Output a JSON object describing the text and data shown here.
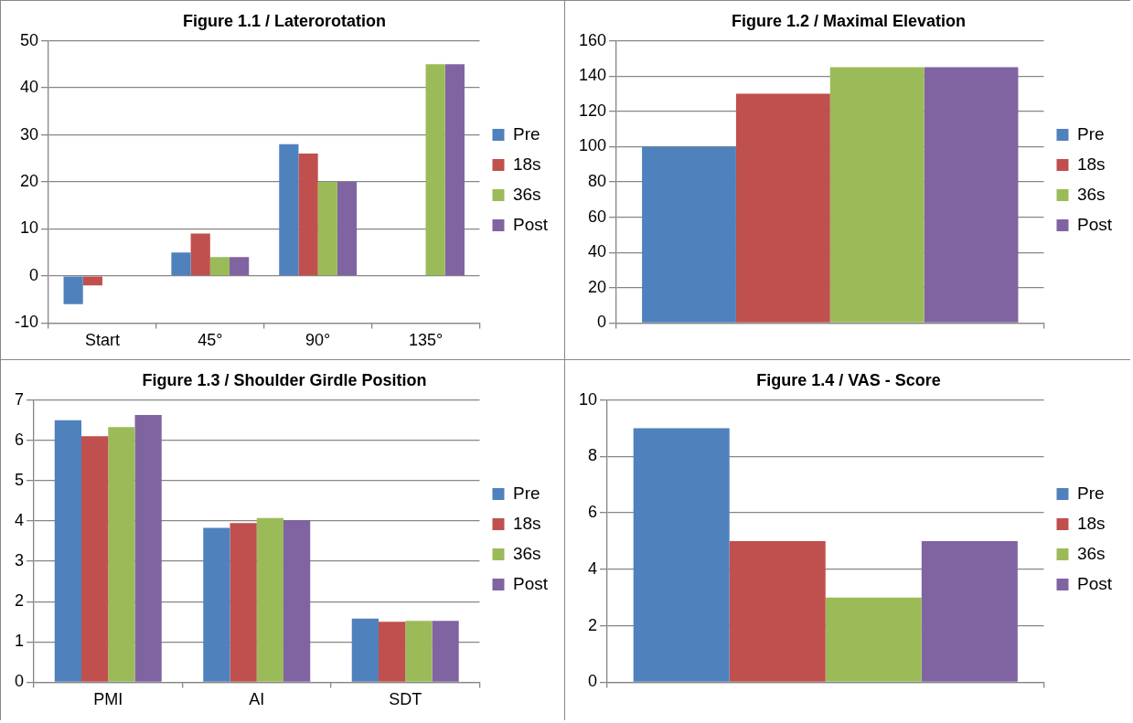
{
  "chart_data": [
    {
      "type": "bar",
      "title": "Figure 1.1 / Laterorotation",
      "categories": [
        "Start",
        "45°",
        "90°",
        "135°"
      ],
      "series": [
        {
          "name": "Pre",
          "color": "#4f81bd",
          "values": [
            -6,
            5,
            28,
            null
          ]
        },
        {
          "name": "18s",
          "color": "#c0504d",
          "values": [
            -2,
            9,
            26,
            null
          ]
        },
        {
          "name": "36s",
          "color": "#9bbb59",
          "values": [
            null,
            4,
            20,
            45
          ]
        },
        {
          "name": "Post",
          "color": "#8064a2",
          "values": [
            null,
            4,
            20,
            45
          ]
        }
      ],
      "ylim": [
        -10,
        50
      ],
      "yticks": [
        -10,
        0,
        10,
        20,
        30,
        40,
        50
      ],
      "grid": "y",
      "legend": "right"
    },
    {
      "type": "bar",
      "title": "Figure 1.2 / Maximal Elevation",
      "categories": [
        null
      ],
      "series": [
        {
          "name": "Pre",
          "color": "#4f81bd",
          "values": [
            100
          ]
        },
        {
          "name": "18s",
          "color": "#c0504d",
          "values": [
            130
          ]
        },
        {
          "name": "36s",
          "color": "#9bbb59",
          "values": [
            145
          ]
        },
        {
          "name": "Post",
          "color": "#8064a2",
          "values": [
            145
          ]
        }
      ],
      "ylim": [
        0,
        160
      ],
      "yticks": [
        0,
        20,
        40,
        60,
        80,
        100,
        120,
        140,
        160
      ],
      "grid": "y",
      "legend": "right"
    },
    {
      "type": "bar",
      "title": "Figure 1.3 / Shoulder Girdle Position",
      "categories": [
        "PMI",
        "AI",
        "SDT"
      ],
      "series": [
        {
          "name": "Pre",
          "color": "#4f81bd",
          "values": [
            6.5,
            3.83,
            1.58
          ]
        },
        {
          "name": "18s",
          "color": "#c0504d",
          "values": [
            6.1,
            3.95,
            1.5
          ]
        },
        {
          "name": "36s",
          "color": "#9bbb59",
          "values": [
            6.33,
            4.07,
            1.52
          ]
        },
        {
          "name": "Post",
          "color": "#8064a2",
          "values": [
            6.63,
            4.02,
            1.52
          ]
        }
      ],
      "ylim": [
        0,
        7
      ],
      "yticks": [
        0,
        1,
        2,
        3,
        4,
        5,
        6,
        7
      ],
      "grid": "y",
      "legend": "right"
    },
    {
      "type": "bar",
      "title": "Figure 1.4 / VAS - Score",
      "categories": [
        null
      ],
      "series": [
        {
          "name": "Pre",
          "color": "#4f81bd",
          "values": [
            9
          ]
        },
        {
          "name": "18s",
          "color": "#c0504d",
          "values": [
            5
          ]
        },
        {
          "name": "36s",
          "color": "#9bbb59",
          "values": [
            3
          ]
        },
        {
          "name": "Post",
          "color": "#8064a2",
          "values": [
            5
          ]
        }
      ],
      "ylim": [
        0,
        10
      ],
      "yticks": [
        0,
        2,
        4,
        6,
        8,
        10
      ],
      "grid": "y",
      "legend": "right"
    }
  ]
}
